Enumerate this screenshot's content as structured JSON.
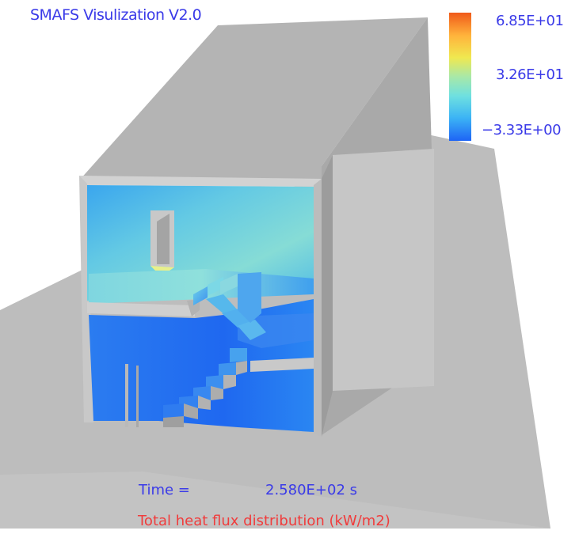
{
  "app_title": "SMAFS Visulization V2.0",
  "legend": {
    "max_label": "6.85E+01",
    "mid_label": "3.26E+01",
    "min_label": "−3.33E+00",
    "colors": [
      "#f05a1a",
      "#ffb43c",
      "#f0e850",
      "#a8e8a8",
      "#6ee0e0",
      "#3cb4f5",
      "#1e64f5"
    ]
  },
  "time": {
    "label": "Time  =",
    "value": "2.580E+02  s"
  },
  "caption": "Total heat flux distribution (kW/m2)",
  "colors": {
    "title_text": "#3a3ae8",
    "legend_text": "#3a3ae8",
    "time_text": "#3a3ae8",
    "caption_text": "#f03c3c",
    "grey_surface": "#b9b9b9"
  }
}
